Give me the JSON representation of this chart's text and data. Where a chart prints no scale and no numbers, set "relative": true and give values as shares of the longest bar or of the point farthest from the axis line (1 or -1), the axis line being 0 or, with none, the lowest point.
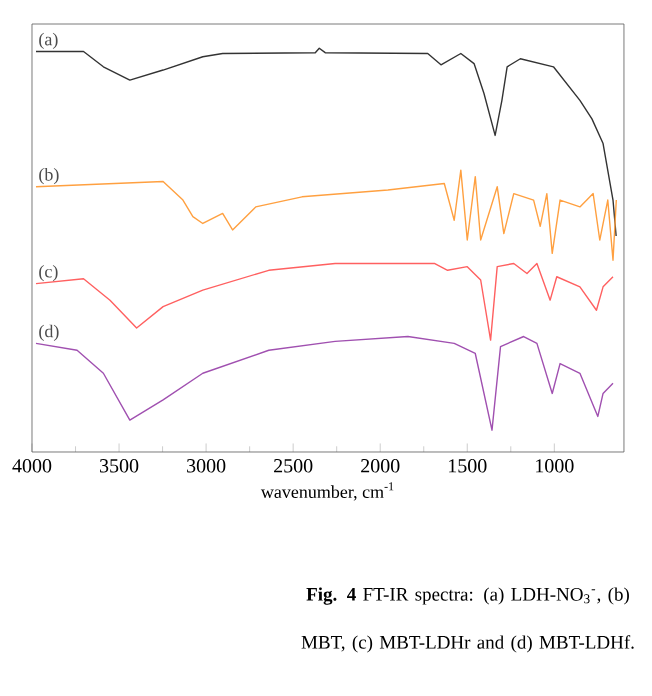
{
  "chart_data": {
    "type": "line",
    "relative": true,
    "xlabel": "wavenumber, cm$^{-1}$",
    "xlim": [
      4000,
      600
    ],
    "xticks": [
      4000,
      3500,
      3000,
      2500,
      2000,
      1500,
      1000
    ],
    "annotations": [
      "**Fig. 4** FT-IR spectra: (a) LDH-NO$_{3}$$^{-}$, (b) MBT, (c) MBT-LDHr and (d) MBT-LDHf."
    ],
    "series": [
      {
        "name": "(a)",
        "color": "#333333",
        "x": [
          3977,
          3704,
          3590,
          3438,
          3247,
          3019,
          2905,
          2373,
          2350,
          2316,
          1727,
          1651,
          1537,
          1461,
          1404,
          1340,
          1301,
          1271,
          1195,
          1005,
          853,
          784,
          720,
          663,
          645
        ],
        "values": [
          0.992,
          0.992,
          0.954,
          0.921,
          0.946,
          0.979,
          0.987,
          0.989,
          1.0,
          0.989,
          0.987,
          0.959,
          0.987,
          0.962,
          0.888,
          0.784,
          0.871,
          0.954,
          0.974,
          0.954,
          0.871,
          0.825,
          0.764,
          0.624,
          0.535
        ]
      },
      {
        "name": "(b)",
        "color": "#ffa040",
        "x": [
          3977,
          3247,
          3133,
          3076,
          3019,
          2905,
          2848,
          2715,
          2449,
          1956,
          1632,
          1575,
          1537,
          1500,
          1454,
          1423,
          1328,
          1290,
          1233,
          1119,
          1081,
          1043,
          1012,
          967,
          853,
          777,
          739,
          693,
          663,
          644
        ],
        "values": [
          0.657,
          0.67,
          0.624,
          0.583,
          0.566,
          0.591,
          0.55,
          0.607,
          0.632,
          0.649,
          0.665,
          0.574,
          0.698,
          0.525,
          0.682,
          0.525,
          0.657,
          0.541,
          0.64,
          0.624,
          0.559,
          0.64,
          0.492,
          0.624,
          0.607,
          0.64,
          0.525,
          0.624,
          0.475,
          0.624
        ]
      },
      {
        "name": "(c)",
        "color": "#ff6060",
        "x": [
          3977,
          3704,
          3552,
          3399,
          3247,
          3019,
          2640,
          2259,
          1689,
          1613,
          1500,
          1423,
          1366,
          1328,
          1233,
          1157,
          1100,
          1024,
          986,
          853,
          758,
          720,
          663
        ],
        "values": [
          0.417,
          0.429,
          0.376,
          0.307,
          0.36,
          0.401,
          0.45,
          0.467,
          0.467,
          0.45,
          0.459,
          0.426,
          0.277,
          0.459,
          0.467,
          0.442,
          0.467,
          0.376,
          0.434,
          0.409,
          0.351,
          0.409,
          0.434
        ]
      },
      {
        "name": "(d)",
        "color": "#a050b0",
        "x": [
          3977,
          3741,
          3590,
          3438,
          3247,
          3019,
          2640,
          2259,
          1841,
          1575,
          1454,
          1358,
          1309,
          1176,
          1100,
          1012,
          967,
          853,
          750,
          720,
          663
        ],
        "values": [
          0.269,
          0.252,
          0.195,
          0.079,
          0.129,
          0.195,
          0.252,
          0.274,
          0.286,
          0.269,
          0.244,
          0.054,
          0.261,
          0.286,
          0.269,
          0.145,
          0.219,
          0.195,
          0.088,
          0.145,
          0.17
        ]
      }
    ]
  }
}
